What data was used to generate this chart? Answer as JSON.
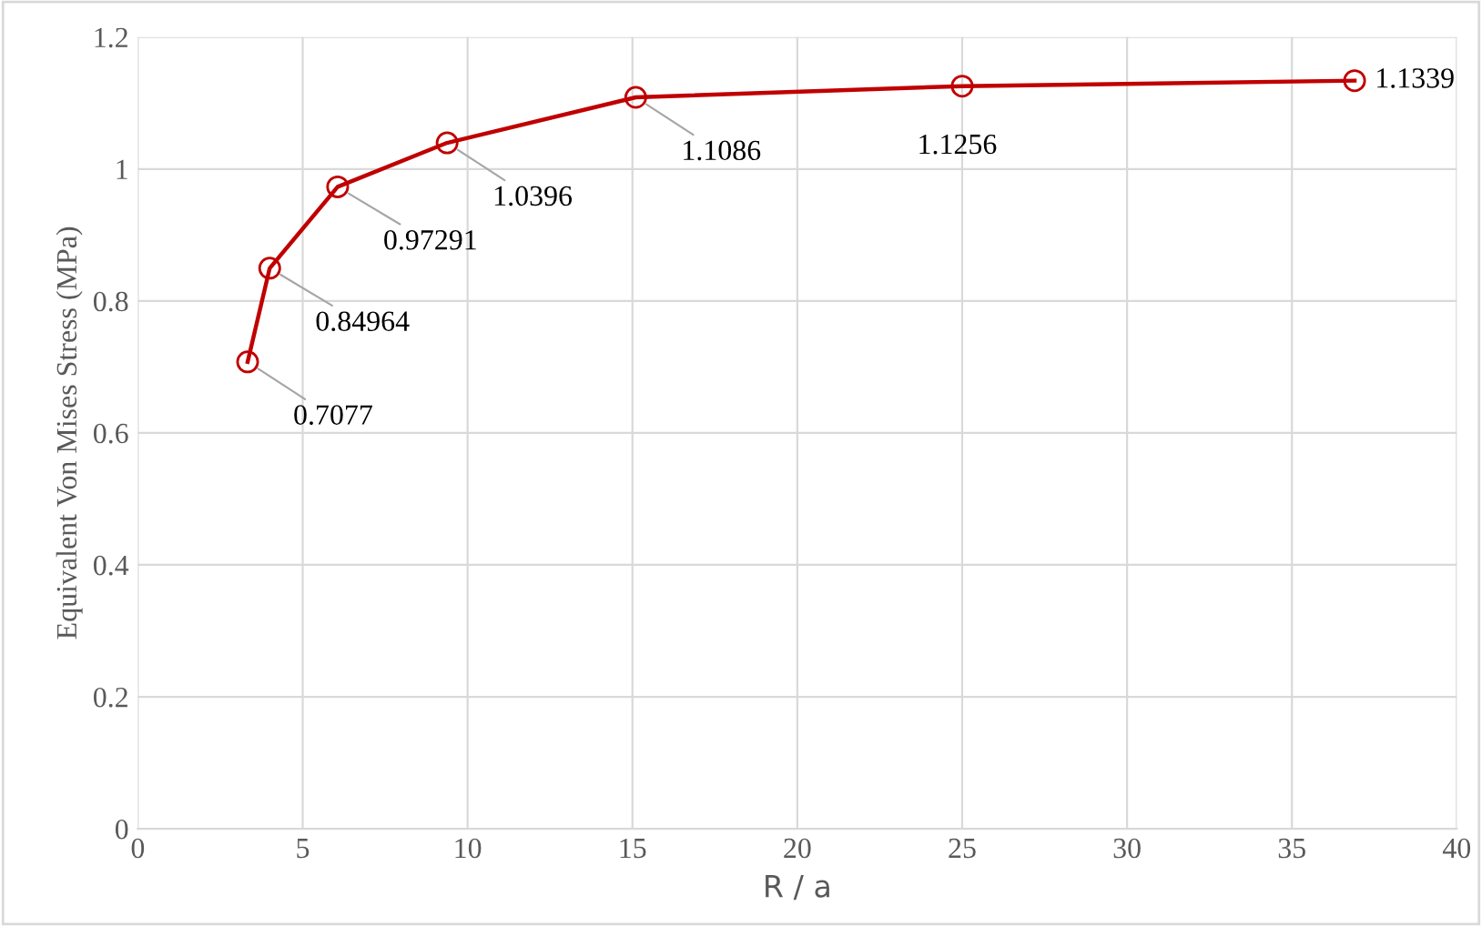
{
  "chart_data": {
    "type": "line",
    "xlabel": "R / a",
    "ylabel": "Equivalent Von Mises Stress (MPa)",
    "x": [
      3.33,
      4,
      6.06,
      9.38,
      15.1,
      25,
      36.9
    ],
    "series": [
      {
        "color": "#c00000",
        "values": [
          0.7077,
          0.84964,
          0.97291,
          1.0396,
          1.1086,
          1.1256,
          1.1339
        ]
      }
    ],
    "xlim": [
      0,
      40
    ],
    "xticks": [
      0,
      5,
      10,
      15,
      20,
      25,
      30,
      35,
      40
    ],
    "ylim": [
      0,
      1.2
    ],
    "yticks": [
      0,
      0.2,
      0.4,
      0.6,
      0.8,
      1,
      1.2
    ],
    "grid": true,
    "marker": "circle",
    "line_style": "solid",
    "data_labels": true
  }
}
